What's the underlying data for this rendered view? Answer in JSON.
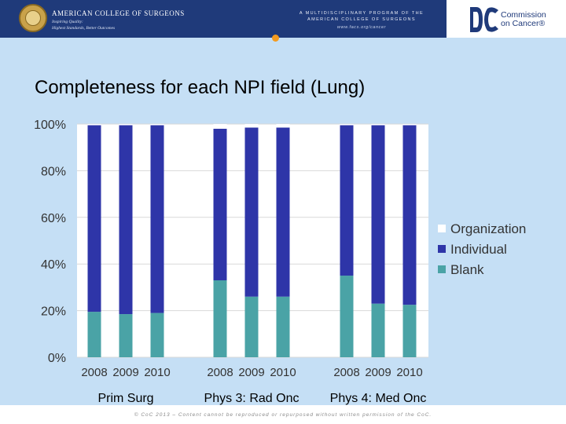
{
  "header": {
    "acs_name": "AMERICAN COLLEGE OF SURGEONS",
    "acs_motto_line1": "Inspiring Quality:",
    "acs_motto_line2": "Highest Standards, Better Outcomes",
    "program_line1": "A MULTIDISCIPLINARY PROGRAM OF THE",
    "program_line2": "AMERICAN COLLEGE OF SURGEONS",
    "program_url": "www.facs.org/cancer",
    "coc_line1": "Commission",
    "coc_line2": "on Cancer®",
    "icons": {
      "seal": "acs-seal-icon",
      "coc_logo": "coc-logo-icon"
    }
  },
  "title": "Completeness for each NPI field (Lung)",
  "footer": {
    "copyright": "© CoC 2013 – Content cannot be reproduced or repurposed without written permission of the CoC."
  },
  "chart_data": {
    "type": "bar",
    "stacked": true,
    "groups": [
      {
        "label": "Prim Surg",
        "categories": [
          "2008",
          "2009",
          "2010"
        ]
      },
      {
        "label": "Phys 3: Rad Onc",
        "categories": [
          "2008",
          "2009",
          "2010"
        ]
      },
      {
        "label": "Phys 4: Med Onc",
        "categories": [
          "2008",
          "2009",
          "2010"
        ]
      }
    ],
    "series": [
      {
        "name": "Blank",
        "color": "#4aa3a6",
        "values": [
          [
            19.5,
            18.5,
            19
          ],
          [
            33,
            26,
            26
          ],
          [
            35,
            23,
            22.5
          ]
        ]
      },
      {
        "name": "Individual",
        "color": "#2e35a8",
        "values": [
          [
            80,
            81,
            80.5
          ],
          [
            65,
            72.5,
            72.5
          ],
          [
            64.5,
            76.5,
            77
          ]
        ]
      },
      {
        "name": "Organization",
        "color": "#ffffff",
        "values": [
          [
            0.5,
            0.5,
            0.5
          ],
          [
            2,
            1.5,
            1.5
          ],
          [
            0.5,
            0.5,
            0.5
          ]
        ]
      }
    ],
    "legend_order": [
      "Organization",
      "Individual",
      "Blank"
    ],
    "y_ticks": [
      "0%",
      "20%",
      "40%",
      "60%",
      "80%",
      "100%"
    ],
    "ylim": [
      0,
      100
    ],
    "grid": true,
    "legend_position": "right",
    "plot_background": "#ffffff",
    "gridline_color": "#d9d9d9"
  }
}
